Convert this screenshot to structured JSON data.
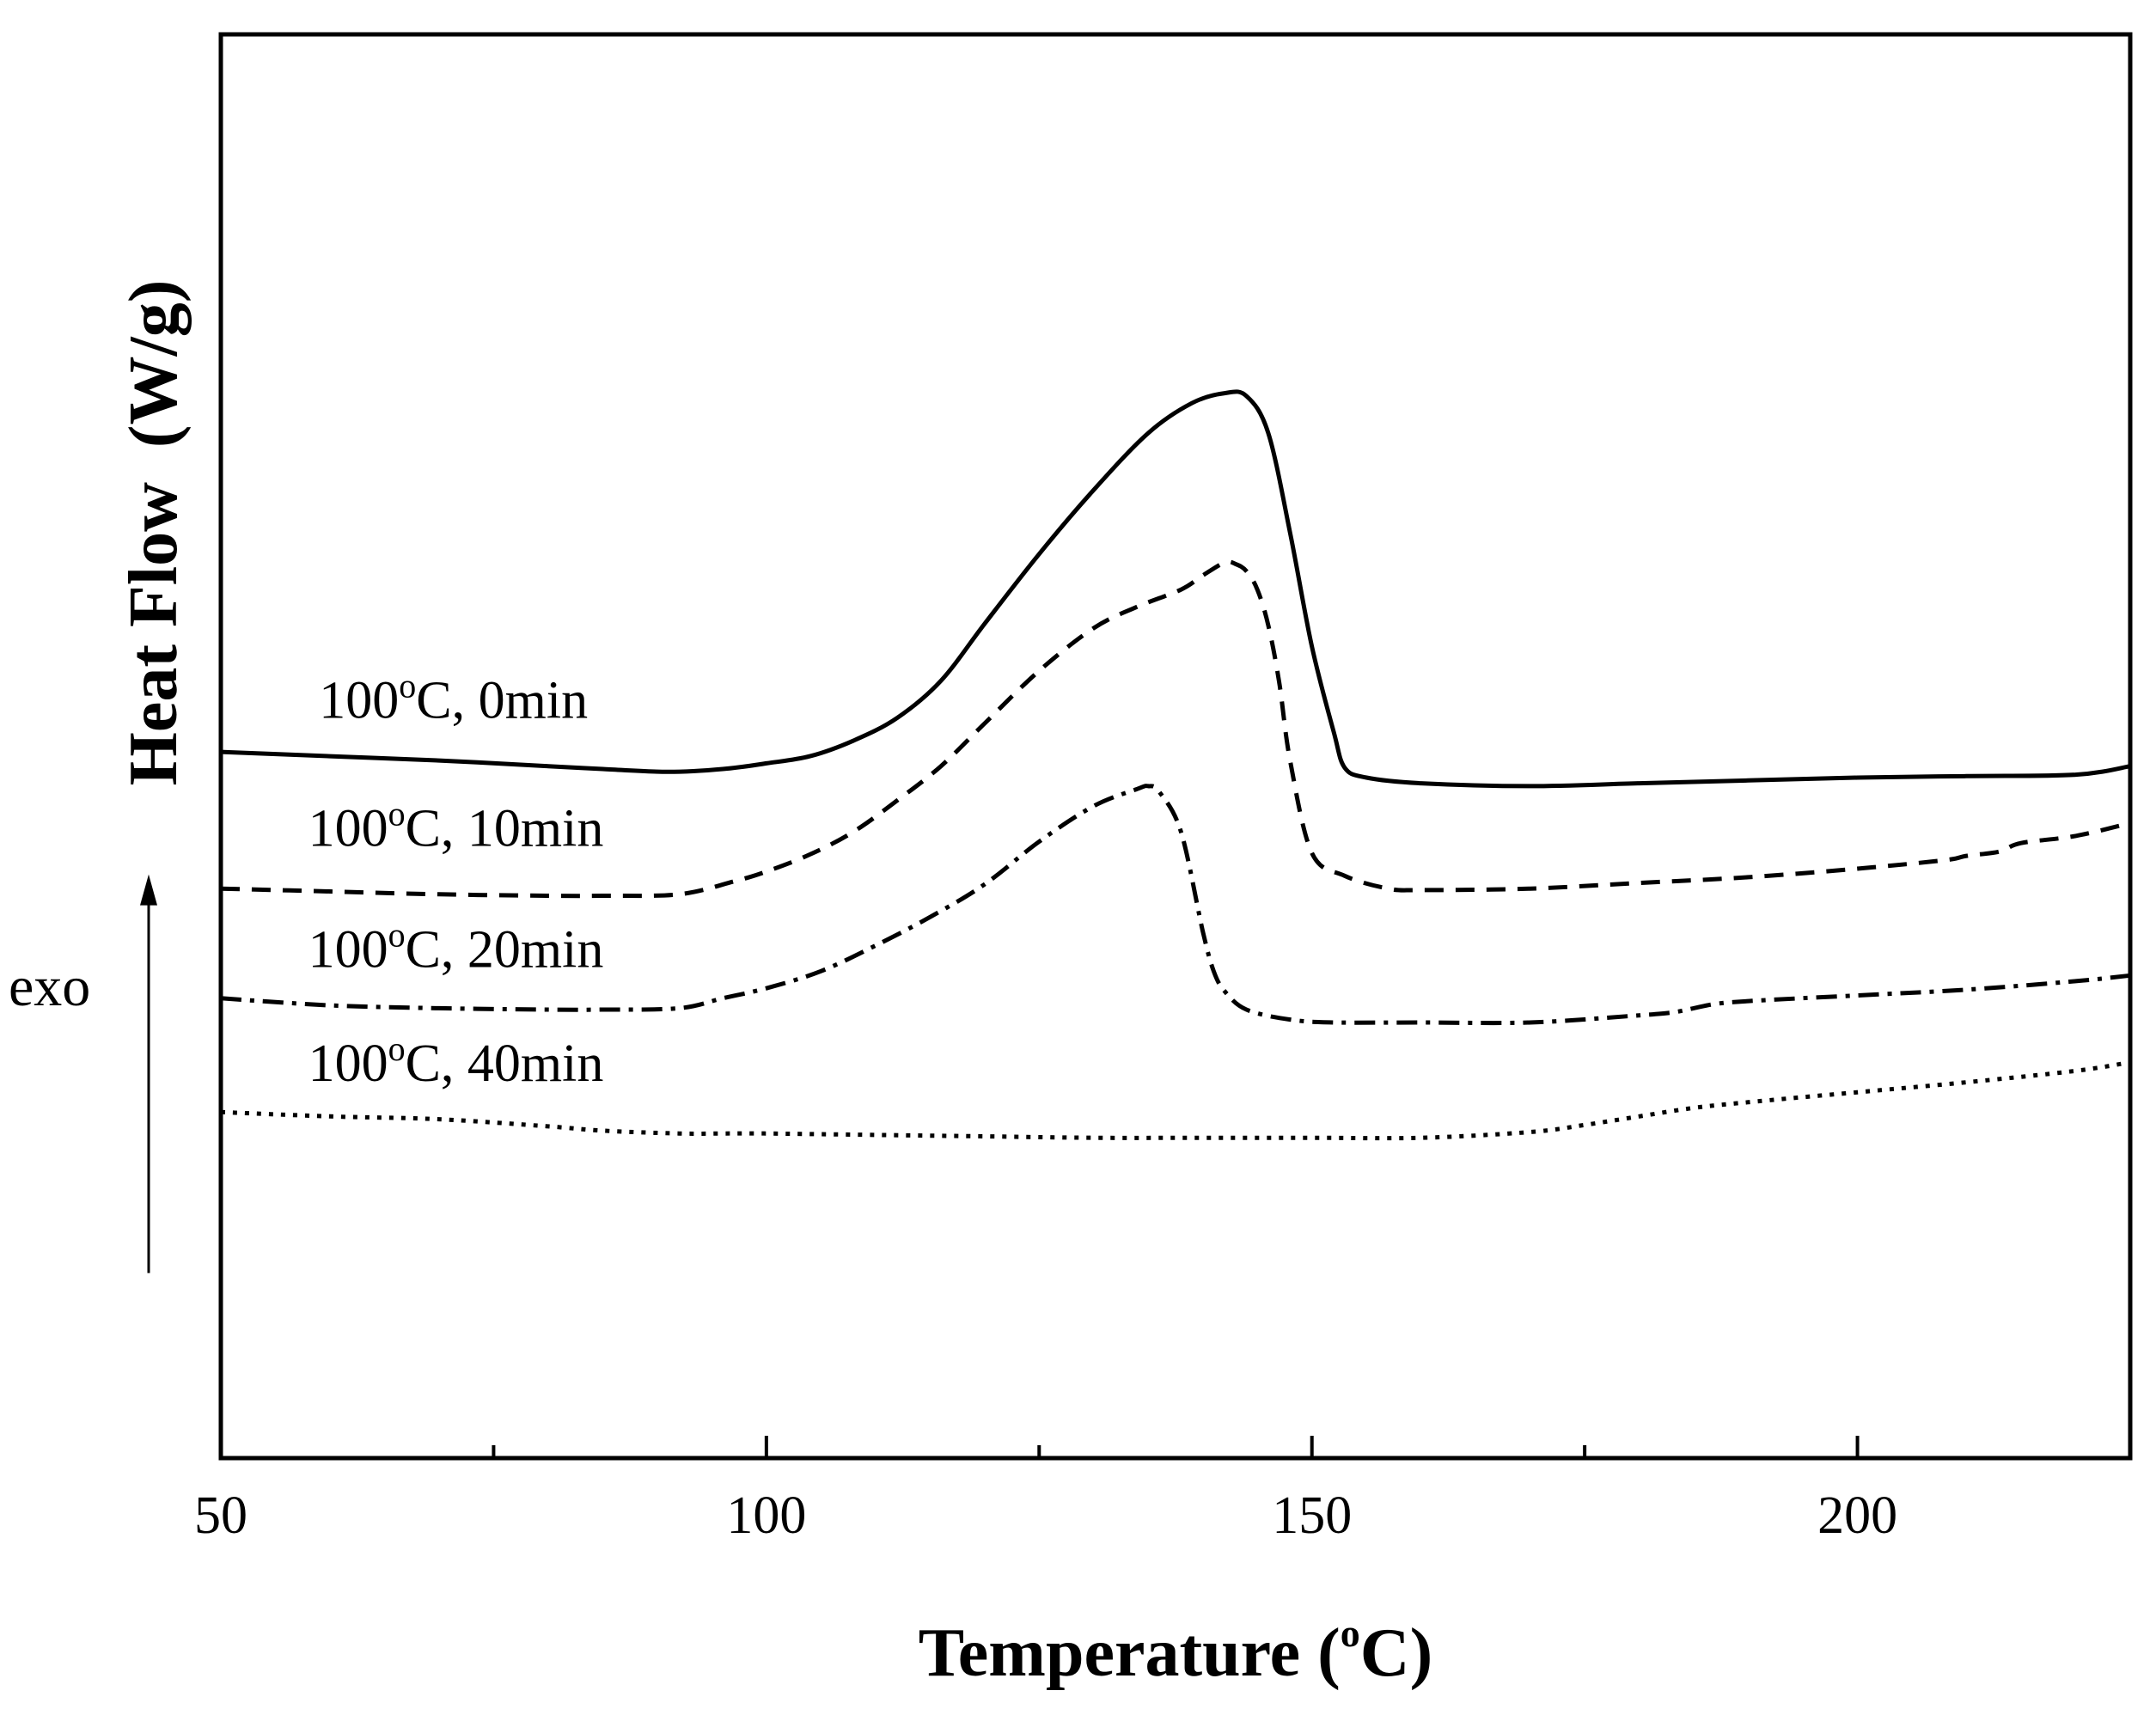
{
  "chart_data": {
    "type": "line",
    "xlabel": "Temperature (",
    "xlabel_sup": "o",
    "xlabel_end": "C)",
    "ylabel": "Heat Flow  (W/g)",
    "xlim": [
      50,
      225
    ],
    "ylim": [
      0,
      100
    ],
    "x_ticks": [
      50,
      100,
      150,
      200
    ],
    "x_tick_labels": [
      "50",
      "100",
      "150",
      "200"
    ],
    "x_minor_ticks": [
      75,
      125,
      175
    ],
    "y_ticks": [],
    "grid": false,
    "legend": "inline labels",
    "annotation": {
      "text": "exo",
      "arrow_direction": "up",
      "arrow_from": 13,
      "arrow_to": 41
    },
    "series": [
      {
        "name": "100°C, 0min",
        "label_base": "100",
        "label_sup": "o",
        "label_rest": "C, 0min",
        "label_at": [
          59,
          52
        ],
        "dash": "solid",
        "x": [
          50,
          60,
          70,
          80,
          85,
          91,
          96,
          100,
          104,
          108,
          112,
          116,
          120,
          125,
          130,
          135,
          139,
          142,
          144,
          146,
          148,
          150,
          152,
          153,
          155,
          160,
          170,
          180,
          190,
          200,
          210,
          220,
          225
        ],
        "y": [
          49.6,
          49.3,
          49.0,
          48.6,
          48.4,
          48.2,
          48.4,
          48.8,
          49.3,
          50.4,
          52.0,
          54.6,
          58.6,
          63.5,
          68.0,
          72.0,
          74.1,
          74.8,
          74.6,
          72.0,
          65.0,
          57.0,
          51.0,
          48.5,
          47.8,
          47.4,
          47.2,
          47.4,
          47.6,
          47.8,
          47.9,
          48.0,
          48.6
        ]
      },
      {
        "name": "100°C, 10min",
        "label_base": "100",
        "label_sup": "o",
        "label_rest": "C, 10min",
        "label_at": [
          58,
          43
        ],
        "dash": "dashed",
        "x": [
          50,
          60,
          70,
          80,
          85,
          92,
          97,
          100,
          104,
          108,
          112,
          116,
          120,
          125,
          130,
          134,
          138,
          140,
          142,
          143,
          144,
          145,
          146,
          147,
          148,
          150,
          153,
          157,
          160,
          170,
          180,
          190,
          200,
          208,
          210,
          213,
          215,
          220,
          225
        ],
        "y": [
          40.0,
          39.8,
          39.6,
          39.5,
          39.5,
          39.6,
          40.5,
          41.2,
          42.4,
          44.0,
          46.2,
          48.6,
          51.6,
          55.3,
          58.3,
          59.8,
          61.0,
          62.0,
          62.9,
          62.8,
          62.3,
          61.0,
          58.5,
          54.5,
          49.0,
          42.5,
          40.9,
          40.0,
          39.9,
          40.0,
          40.4,
          40.8,
          41.4,
          42.0,
          42.3,
          42.6,
          43.2,
          43.7,
          44.6
        ]
      },
      {
        "name": "100°C, 20min",
        "label_base": "100",
        "label_sup": "o",
        "label_rest": "C, 20min",
        "label_at": [
          58,
          34.5
        ],
        "dash": "dashdot",
        "x": [
          50,
          60,
          70,
          80,
          85,
          92,
          96,
          100,
          105,
          110,
          115,
          120,
          125,
          130,
          134,
          135,
          136,
          138,
          140,
          141,
          142,
          144,
          148,
          152,
          160,
          170,
          180,
          183,
          185,
          187,
          190,
          200,
          210,
          220,
          225
        ],
        "y": [
          32.3,
          31.8,
          31.6,
          31.5,
          31.5,
          31.6,
          32.3,
          33.0,
          34.2,
          36.0,
          38.0,
          40.3,
          43.3,
          45.8,
          47.0,
          47.2,
          46.8,
          44.0,
          37.0,
          34.2,
          32.8,
          31.5,
          30.8,
          30.6,
          30.6,
          30.6,
          31.1,
          31.3,
          31.6,
          31.9,
          32.1,
          32.5,
          32.9,
          33.5,
          33.9
        ]
      },
      {
        "name": "100°C, 40min",
        "label_base": "100",
        "label_sup": "o",
        "label_rest": "C, 40min",
        "label_at": [
          58,
          26.5
        ],
        "dash": "dotted",
        "x": [
          50,
          60,
          70,
          80,
          85,
          92,
          96,
          100,
          110,
          120,
          130,
          140,
          150,
          160,
          170,
          175,
          180,
          185,
          190,
          200,
          210,
          220,
          225
        ],
        "y": [
          24.3,
          24.0,
          23.8,
          23.3,
          23.0,
          22.8,
          22.8,
          22.8,
          22.7,
          22.6,
          22.5,
          22.5,
          22.5,
          22.5,
          22.9,
          23.4,
          24.0,
          24.6,
          25.0,
          25.7,
          26.4,
          27.2,
          27.8
        ]
      }
    ]
  }
}
